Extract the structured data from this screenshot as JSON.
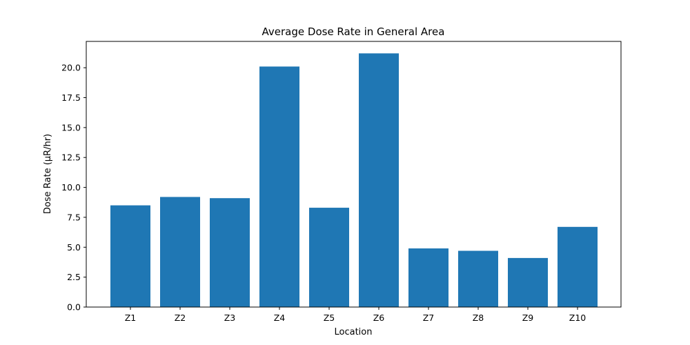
{
  "chart_data": {
    "type": "bar",
    "title": "Average Dose Rate in General Area",
    "xlabel": "Location",
    "ylabel": "Dose Rate (μR/hr)",
    "categories": [
      "Z1",
      "Z2",
      "Z3",
      "Z4",
      "Z5",
      "Z6",
      "Z7",
      "Z8",
      "Z9",
      "Z10"
    ],
    "values": [
      8.5,
      9.2,
      9.1,
      20.1,
      8.3,
      21.2,
      4.9,
      4.7,
      4.1,
      6.7
    ],
    "ylim": [
      0,
      22.2
    ],
    "yticks": [
      0.0,
      2.5,
      5.0,
      7.5,
      10.0,
      12.5,
      15.0,
      17.5,
      20.0
    ],
    "ytick_labels": [
      "0.0",
      "2.5",
      "5.0",
      "7.5",
      "10.0",
      "12.5",
      "15.0",
      "17.5",
      "20.0"
    ],
    "bar_color": "#1f77b4",
    "grid": false,
    "legend": "none"
  }
}
